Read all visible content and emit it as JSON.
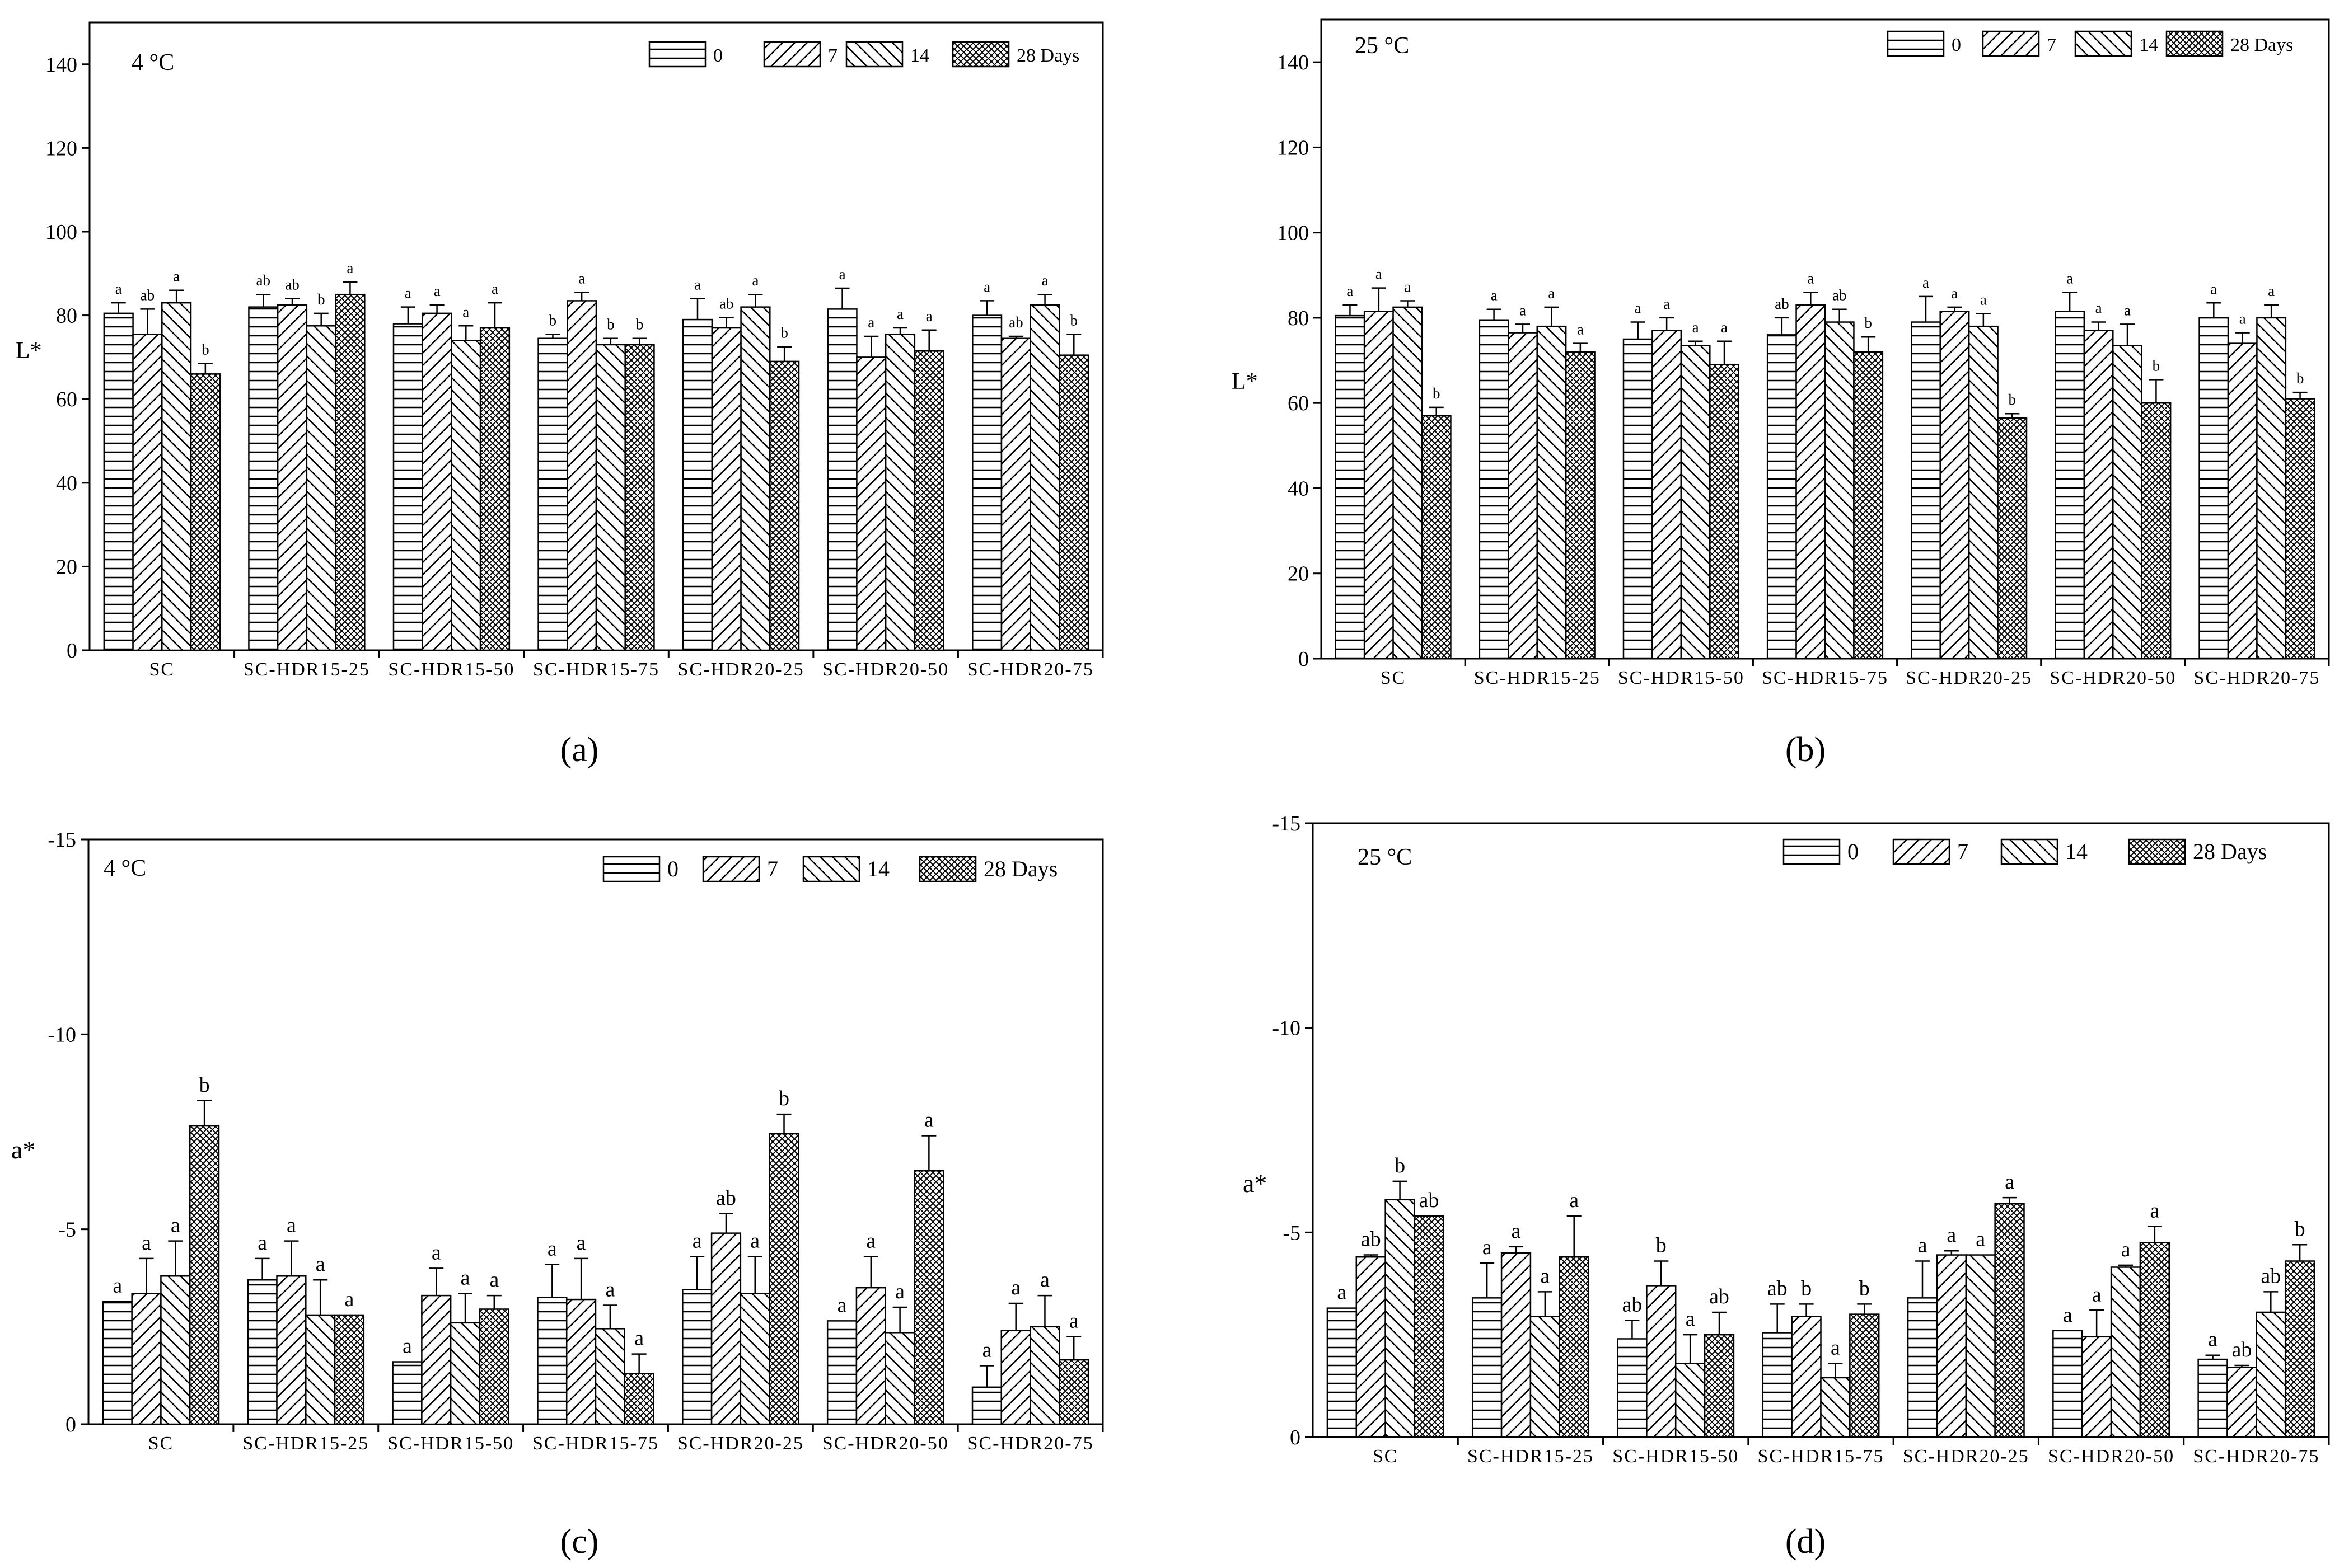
{
  "figure": {
    "panel_labels": [
      "(a)",
      "(b)",
      "(c)",
      "(d)"
    ]
  },
  "chart_data": [
    {
      "type": "bar",
      "panel": "(a)",
      "temperature": "4 °C",
      "ylabel": "L*",
      "xlabel": "",
      "ylim": [
        0,
        150
      ],
      "yticks": [
        0,
        20,
        40,
        60,
        80,
        100,
        120,
        140
      ],
      "categories": [
        "SC",
        "SC-HDR15-25",
        "SC-HDR15-50",
        "SC-HDR15-75",
        "SC-HDR20-25",
        "SC-HDR20-50",
        "SC-HDR20-75"
      ],
      "legend": [
        "0",
        "7",
        "14",
        "28 Days"
      ],
      "legend_position": "top-right",
      "series": [
        {
          "name": "0",
          "values": [
            80.5,
            82,
            78,
            74.5,
            79,
            81.5,
            80
          ],
          "errors": [
            2.5,
            3,
            4,
            1,
            5,
            5,
            3.5
          ],
          "letters": [
            "a",
            "ab",
            "a",
            "b",
            "a",
            "a",
            "a"
          ]
        },
        {
          "name": "7",
          "values": [
            75.5,
            82.5,
            80.5,
            83.5,
            77,
            70,
            74.5
          ],
          "errors": [
            6,
            1.5,
            2,
            2,
            2.5,
            5,
            0.5
          ],
          "letters": [
            "ab",
            "ab",
            "a",
            "a",
            "ab",
            "a",
            "ab"
          ]
        },
        {
          "name": "14",
          "values": [
            83,
            77.5,
            74,
            73,
            82,
            75.5,
            82.5
          ],
          "errors": [
            3,
            3,
            3.5,
            1.5,
            3,
            1.5,
            2.5
          ],
          "letters": [
            "a",
            "b",
            "a",
            "b",
            "a",
            "a",
            "a"
          ]
        },
        {
          "name": "28 Days",
          "values": [
            66,
            85,
            77,
            73,
            69,
            71.5,
            70.5
          ],
          "errors": [
            2.5,
            3,
            6,
            1.5,
            3.5,
            5,
            5
          ],
          "letters": [
            "b",
            "a",
            "a",
            "b",
            "b",
            "a",
            "b"
          ]
        }
      ]
    },
    {
      "type": "bar",
      "panel": "(b)",
      "temperature": "25 °C",
      "ylabel": "L*",
      "xlabel": "",
      "ylim": [
        0,
        150
      ],
      "yticks": [
        0,
        20,
        40,
        60,
        80,
        100,
        120,
        140
      ],
      "categories": [
        "SC",
        "SC-HDR15-25",
        "SC-HDR15-50",
        "SC-HDR15-75",
        "SC-HDR20-25",
        "SC-HDR20-50",
        "SC-HDR20-75"
      ],
      "legend": [
        "0",
        "7",
        "14",
        "28 Days"
      ],
      "legend_position": "top-right",
      "series": [
        {
          "name": "0",
          "values": [
            80.5,
            79.5,
            75,
            76,
            79,
            81.5,
            80
          ],
          "errors": [
            2.5,
            2.5,
            4,
            4,
            6,
            4.5,
            3.5
          ],
          "letters": [
            "a",
            "a",
            "a",
            "ab",
            "a",
            "a",
            "a"
          ]
        },
        {
          "name": "7",
          "values": [
            81.5,
            76.5,
            77,
            83,
            81.5,
            77,
            74
          ],
          "errors": [
            5.5,
            2,
            3,
            3,
            1,
            2,
            2.5
          ],
          "letters": [
            "a",
            "a",
            "a",
            "a",
            "a",
            "a",
            "a"
          ]
        },
        {
          "name": "14",
          "values": [
            82.5,
            78,
            73.5,
            79,
            78,
            73.5,
            80
          ],
          "errors": [
            1.5,
            4.5,
            1,
            3,
            3,
            5,
            3
          ],
          "letters": [
            "a",
            "a",
            "a",
            "ab",
            "a",
            "a",
            "a"
          ]
        },
        {
          "name": "28 Days",
          "values": [
            57,
            72,
            69,
            72,
            56.5,
            60,
            61
          ],
          "errors": [
            2,
            2,
            5.5,
            3.5,
            1,
            5.5,
            1.5
          ],
          "letters": [
            "b",
            "a",
            "a",
            "b",
            "b",
            "b",
            "b"
          ]
        }
      ]
    },
    {
      "type": "bar",
      "panel": "(c)",
      "temperature": "4 °C",
      "ylabel": "a*",
      "xlabel": "",
      "ylim": [
        0,
        -15
      ],
      "yticks": [
        -15,
        -10,
        -5,
        0
      ],
      "categories": [
        "SC",
        "SC-HDR15-25",
        "SC-HDR15-50",
        "SC-HDR15-75",
        "SC-HDR20-25",
        "SC-HDR20-50",
        "SC-HDR20-75"
      ],
      "legend": [
        "0",
        "7",
        "14",
        "28 Days"
      ],
      "legend_position": "top-right",
      "series": [
        {
          "name": "0",
          "values": [
            -3.15,
            -3.7,
            -1.6,
            -3.25,
            -3.45,
            -2.65,
            -0.95
          ],
          "errors": [
            0,
            0.55,
            0,
            0.85,
            0.85,
            0,
            0.55
          ],
          "letters": [
            "a",
            "a",
            "a",
            "a",
            "a",
            "a",
            "a"
          ]
        },
        {
          "name": "7",
          "values": [
            -3.35,
            -3.8,
            -3.3,
            -3.2,
            -4.9,
            -3.5,
            -2.4
          ],
          "errors": [
            0.9,
            0.9,
            0.7,
            1.05,
            0.5,
            0.8,
            0.7
          ],
          "letters": [
            "a",
            "a",
            "a",
            "a",
            "ab",
            "a",
            "a"
          ]
        },
        {
          "name": "14",
          "values": [
            -3.8,
            -2.8,
            -2.6,
            -2.45,
            -3.35,
            -2.35,
            -2.5
          ],
          "errors": [
            0.9,
            0.9,
            0.75,
            0.6,
            0.95,
            0.65,
            0.8
          ],
          "letters": [
            "a",
            "a",
            "a",
            "a",
            "a",
            "a",
            "a"
          ]
        },
        {
          "name": "28 Days",
          "values": [
            -7.65,
            -2.8,
            -2.95,
            -1.3,
            -7.45,
            -6.5,
            -1.65
          ],
          "errors": [
            0.65,
            0,
            0.35,
            0.5,
            0.5,
            0.9,
            0.6
          ],
          "letters": [
            "b",
            "a",
            "a",
            "a",
            "b",
            "a",
            "a"
          ]
        }
      ]
    },
    {
      "type": "bar",
      "panel": "(d)",
      "temperature": "25 °C",
      "ylabel": "a*",
      "xlabel": "",
      "ylim": [
        0,
        -15
      ],
      "yticks": [
        -15,
        -10,
        -5,
        0
      ],
      "categories": [
        "SC",
        "SC-HDR15-25",
        "SC-HDR15-50",
        "SC-HDR15-75",
        "SC-HDR20-25",
        "SC-HDR20-50",
        "SC-HDR20-75"
      ],
      "legend": [
        "0",
        "7",
        "14",
        "28 Days"
      ],
      "legend_position": "top-right",
      "series": [
        {
          "name": "0",
          "values": [
            -3.15,
            -3.4,
            -2.4,
            -2.55,
            -3.4,
            -2.6,
            -1.9
          ],
          "errors": [
            0,
            0.85,
            0.45,
            0.7,
            0.9,
            0,
            0.1
          ],
          "letters": [
            "a",
            "a",
            "ab",
            "ab",
            "a",
            "a",
            "a"
          ]
        },
        {
          "name": "7",
          "values": [
            -4.4,
            -4.5,
            -3.7,
            -2.95,
            -4.45,
            -2.45,
            -1.7
          ],
          "errors": [
            0.05,
            0.15,
            0.6,
            0.3,
            0.1,
            0.65,
            0.05
          ],
          "letters": [
            "ab",
            "a",
            "b",
            "b",
            "a",
            "a",
            "ab"
          ]
        },
        {
          "name": "14",
          "values": [
            -5.8,
            -2.95,
            -1.8,
            -1.45,
            -4.45,
            -4.15,
            -3.05
          ],
          "errors": [
            0.45,
            0.6,
            0.7,
            0.35,
            0,
            0.05,
            0.5
          ],
          "letters": [
            "b",
            "a",
            "a",
            "a",
            "a",
            "a",
            "ab"
          ]
        },
        {
          "name": "28 Days",
          "values": [
            -5.4,
            -4.4,
            -2.5,
            -3,
            -5.7,
            -4.75,
            -4.3
          ],
          "errors": [
            0,
            1,
            0.55,
            0.25,
            0.15,
            0.4,
            0.4
          ],
          "letters": [
            "ab",
            "a",
            "ab",
            "b",
            "a",
            "a",
            "b"
          ]
        }
      ]
    }
  ]
}
